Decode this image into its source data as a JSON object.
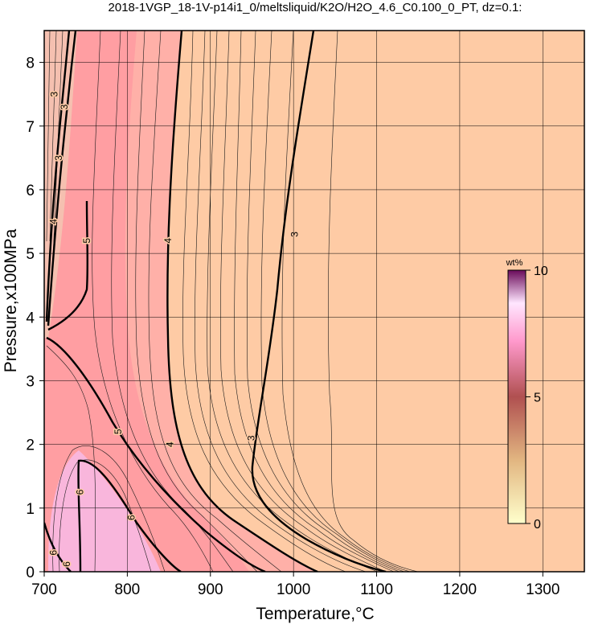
{
  "chart_data": {
    "type": "heatmap",
    "title": "2018-1VGP_18-1V-p14i1_0/meltsliquid/K2O/H2O_4.6_C0.100_0_PT, dz=0.1:",
    "xlabel": "Temperature,°C",
    "ylabel": "Pressure,x100MPa",
    "xlim": [
      700,
      1350
    ],
    "ylim": [
      0,
      8.5
    ],
    "x_ticks": [
      700,
      800,
      900,
      1000,
      1100,
      1200,
      1300
    ],
    "y_ticks": [
      0,
      1,
      2,
      3,
      4,
      5,
      6,
      7,
      8
    ],
    "grid": true,
    "contour_interval": 0.1,
    "colorbar": {
      "title": "wt%",
      "min": 0,
      "max": 10,
      "ticks": [
        0,
        5,
        10
      ],
      "colors": [
        "#ffffcc",
        "#d9a06f",
        "#b05050",
        "#ff99cc",
        "#ffe6ff",
        "#6a0a5a"
      ]
    },
    "background_color": "#fecba5",
    "contour_labels": [
      {
        "text": "3",
        "temp": 713,
        "pres": 7.5
      },
      {
        "text": "3",
        "temp": 718,
        "pres": 6.5
      },
      {
        "text": "4",
        "temp": 712,
        "pres": 5.5
      },
      {
        "text": "3",
        "temp": 725,
        "pres": 7.3
      },
      {
        "text": "5",
        "temp": 752,
        "pres": 5.2
      },
      {
        "text": "4",
        "temp": 850,
        "pres": 5.2
      },
      {
        "text": "3",
        "temp": 1002,
        "pres": 5.3
      },
      {
        "text": "5",
        "temp": 790,
        "pres": 2.2
      },
      {
        "text": "4",
        "temp": 852,
        "pres": 2.0
      },
      {
        "text": "3",
        "temp": 950,
        "pres": 2.1
      },
      {
        "text": "6",
        "temp": 744,
        "pres": 1.25
      },
      {
        "text": "6",
        "temp": 806,
        "pres": 0.85
      },
      {
        "text": "6",
        "temp": 712,
        "pres": 0.3
      },
      {
        "text": "6",
        "temp": 728,
        "pres": 0.12
      }
    ]
  }
}
